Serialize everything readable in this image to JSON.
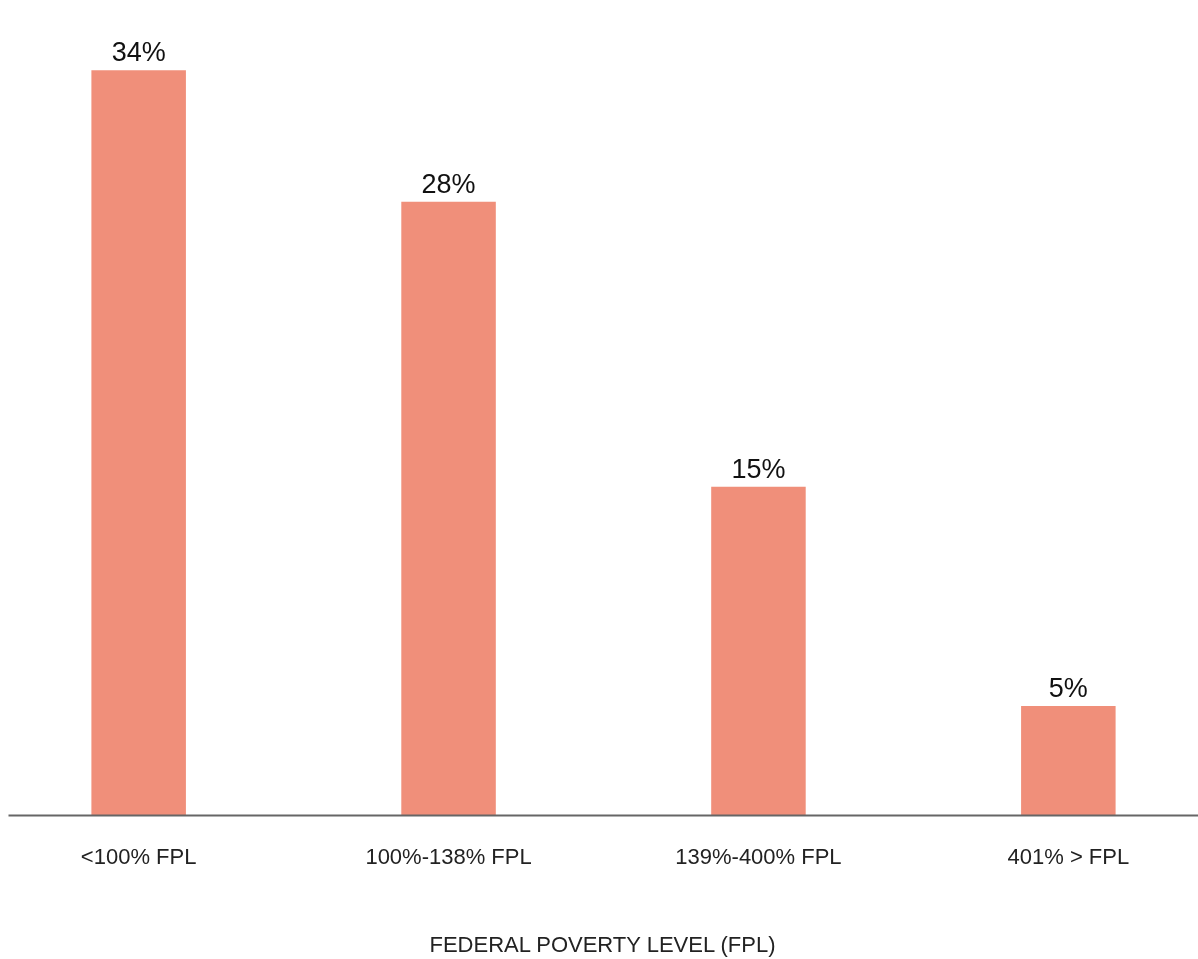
{
  "chart_data": {
    "type": "bar",
    "xlabel": "FEDERAL POVERTY LEVEL (FPL)",
    "categories": [
      "<100% FPL",
      "100%-138% FPL",
      "139%-400% FPL",
      "401% > FPL"
    ],
    "values": [
      34,
      28,
      15,
      5
    ],
    "color": "#f08f7a",
    "value_labels": [
      "34%",
      "28%",
      "15%",
      "5%"
    ],
    "grid": false,
    "tick_labels": "x"
  }
}
